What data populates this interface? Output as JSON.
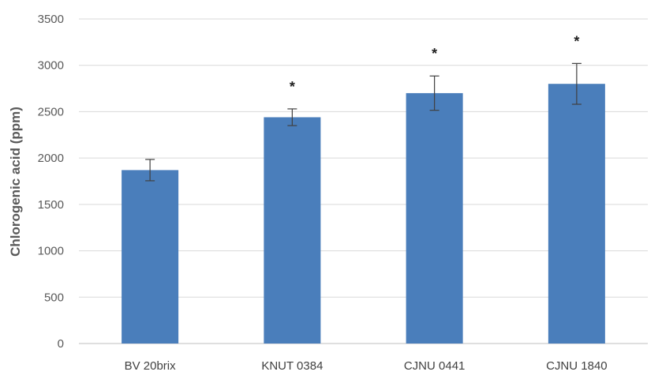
{
  "chart_data": {
    "type": "bar",
    "categories": [
      "BV 20brix",
      "KNUT 0384",
      "CJNU 0441",
      "CJNU 1840"
    ],
    "values": [
      1870,
      2440,
      2700,
      2800
    ],
    "error": [
      115,
      90,
      185,
      220
    ],
    "significance": [
      "",
      "*",
      "*",
      "*"
    ],
    "title": "",
    "xlabel": "",
    "ylabel": "Chlorogenic acid (ppm)",
    "ylim": [
      0,
      3500
    ],
    "yticks": [
      0,
      500,
      1000,
      1500,
      2000,
      2500,
      3000,
      3500
    ],
    "grid": "horizontal",
    "bar_color": "#4a7ebb",
    "grid_color": "#d9d9d9",
    "error_color": "#404040"
  }
}
